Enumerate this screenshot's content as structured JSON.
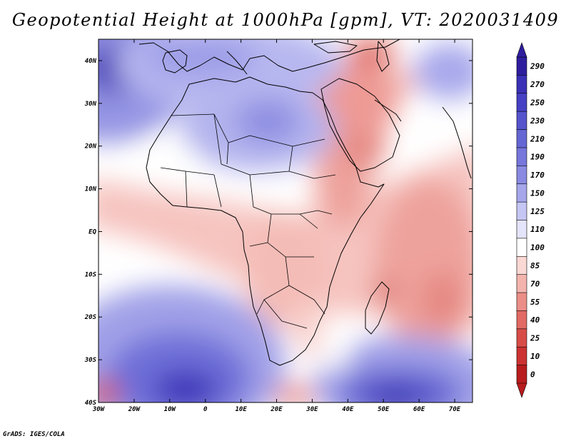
{
  "title": "Geopotential Height at 1000hPa [gpm], VT: 2020031409",
  "footer": "GrADS: IGES/COLA",
  "map": {
    "lon_range": [
      -30,
      75
    ],
    "lat_range": [
      -40,
      45
    ],
    "lon_ticks": [
      "30W",
      "20W",
      "10W",
      "0",
      "10E",
      "20E",
      "30E",
      "40E",
      "50E",
      "60E",
      "70E"
    ],
    "lat_ticks": [
      "40N",
      "30N",
      "20N",
      "10N",
      "EQ",
      "10S",
      "20S",
      "30S",
      "40S"
    ],
    "colors": {
      "deep_blue": "#3a2cb0",
      "mid_blue": "#6a6ad8",
      "light_blue": "#9c9ce8",
      "pale_blue": "#d4d4f6",
      "white": "#ffffff",
      "pale_red": "#f8d4d0",
      "light_red": "#f2aaa6",
      "mid_red": "#e07c78",
      "deep_red": "#c83c3a"
    }
  },
  "colorbar": {
    "labels": [
      "290",
      "270",
      "250",
      "230",
      "210",
      "190",
      "170",
      "150",
      "125",
      "110",
      "100",
      "85",
      "70",
      "55",
      "40",
      "25",
      "10",
      "0"
    ],
    "colors": [
      "#2e1e9e",
      "#3a30b6",
      "#4640c4",
      "#5554cc",
      "#6466d4",
      "#7676dc",
      "#8a8ae2",
      "#a6a6ea",
      "#c6c6f4",
      "#e4e4fa",
      "#ffffff",
      "#fad8d4",
      "#f4b4ae",
      "#ec8e88",
      "#e26a64",
      "#d84c48",
      "#cc3232",
      "#b81c1e"
    ]
  }
}
